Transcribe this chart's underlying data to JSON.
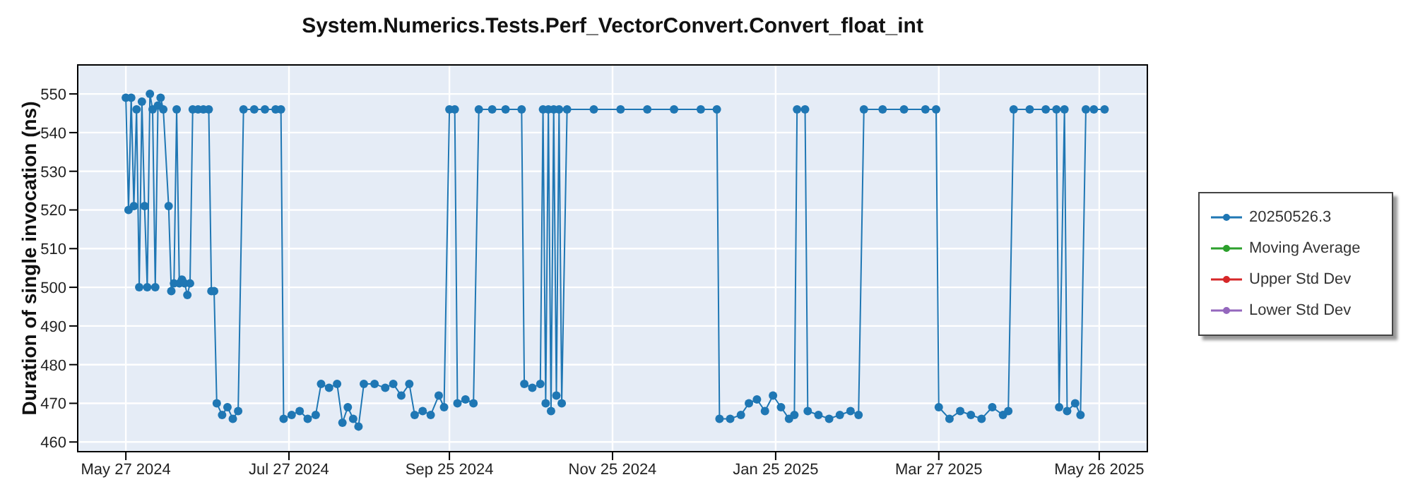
{
  "chart_data": {
    "type": "line",
    "title": "System.Numerics.Tests.Perf_VectorConvert.Convert_float_int",
    "ylabel": "Duration of single invocation (ns)",
    "x": [
      "2024-05-27",
      "2024-05-28",
      "2024-05-29",
      "2024-05-30",
      "2024-05-31",
      "2024-06-01",
      "2024-06-02",
      "2024-06-03",
      "2024-06-04",
      "2024-06-05",
      "2024-06-06",
      "2024-06-07",
      "2024-06-08",
      "2024-06-09",
      "2024-06-10",
      "2024-06-12",
      "2024-06-13",
      "2024-06-14",
      "2024-06-15",
      "2024-06-16",
      "2024-06-17",
      "2024-06-18",
      "2024-06-19",
      "2024-06-20",
      "2024-06-21",
      "2024-06-23",
      "2024-06-25",
      "2024-06-27",
      "2024-06-28",
      "2024-06-29",
      "2024-06-30",
      "2024-07-02",
      "2024-07-04",
      "2024-07-06",
      "2024-07-08",
      "2024-07-10",
      "2024-07-14",
      "2024-07-18",
      "2024-07-22",
      "2024-07-24",
      "2024-07-25",
      "2024-07-28",
      "2024-07-31",
      "2024-08-03",
      "2024-08-06",
      "2024-08-08",
      "2024-08-11",
      "2024-08-14",
      "2024-08-16",
      "2024-08-18",
      "2024-08-20",
      "2024-08-22",
      "2024-08-24",
      "2024-08-28",
      "2024-09-01",
      "2024-09-04",
      "2024-09-07",
      "2024-09-10",
      "2024-09-12",
      "2024-09-15",
      "2024-09-18",
      "2024-09-21",
      "2024-09-23",
      "2024-09-25",
      "2024-09-27",
      "2024-09-28",
      "2024-10-01",
      "2024-10-04",
      "2024-10-06",
      "2024-10-11",
      "2024-10-16",
      "2024-10-22",
      "2024-10-23",
      "2024-10-26",
      "2024-10-29",
      "2024-10-30",
      "2024-10-31",
      "2024-11-01",
      "2024-11-02",
      "2024-11-03",
      "2024-11-04",
      "2024-11-05",
      "2024-11-06",
      "2024-11-08",
      "2024-11-18",
      "2024-11-28",
      "2024-12-08",
      "2024-12-18",
      "2024-12-28",
      "2025-01-03",
      "2025-01-04",
      "2025-01-08",
      "2025-01-12",
      "2025-01-15",
      "2025-01-18",
      "2025-01-21",
      "2025-01-24",
      "2025-01-27",
      "2025-01-30",
      "2025-02-01",
      "2025-02-02",
      "2025-02-05",
      "2025-02-06",
      "2025-02-10",
      "2025-02-14",
      "2025-02-18",
      "2025-02-22",
      "2025-02-25",
      "2025-02-27",
      "2025-03-06",
      "2025-03-14",
      "2025-03-22",
      "2025-03-26",
      "2025-03-27",
      "2025-03-31",
      "2025-04-04",
      "2025-04-08",
      "2025-04-12",
      "2025-04-16",
      "2025-04-20",
      "2025-04-22",
      "2025-04-24",
      "2025-04-30",
      "2025-05-06",
      "2025-05-10",
      "2025-05-11",
      "2025-05-13",
      "2025-05-14",
      "2025-05-17",
      "2025-05-19",
      "2025-05-21",
      "2025-05-24",
      "2025-05-28"
    ],
    "series": [
      {
        "name": "20250526.3",
        "color": "#1f77b4",
        "values": [
          549,
          520,
          549,
          521,
          546,
          500,
          548,
          521,
          500,
          550,
          546,
          500,
          547,
          549,
          546,
          521,
          499,
          501,
          546,
          501,
          502,
          501,
          498,
          501,
          546,
          546,
          546,
          546,
          499,
          499,
          470,
          467,
          469,
          466,
          468,
          546,
          546,
          546,
          546,
          546,
          466,
          467,
          468,
          466,
          467,
          475,
          474,
          475,
          465,
          469,
          466,
          464,
          475,
          475,
          474,
          475,
          472,
          475,
          467,
          468,
          467,
          472,
          469,
          546,
          546,
          470,
          471,
          470,
          546,
          546,
          546,
          546,
          475,
          474,
          475,
          546,
          470,
          546,
          468,
          546,
          472,
          546,
          470,
          546,
          546,
          546,
          546,
          546,
          546,
          546,
          466,
          466,
          467,
          470,
          471,
          468,
          472,
          469,
          466,
          467,
          546,
          546,
          468,
          467,
          466,
          467,
          468,
          467,
          546,
          546,
          546,
          546,
          546,
          469,
          466,
          468,
          467,
          466,
          469,
          467,
          468,
          546,
          546,
          546,
          546,
          469,
          546,
          468,
          470,
          467,
          546,
          546,
          546
        ]
      },
      {
        "name": "Moving Average",
        "color": "#2ca02c",
        "values": [
          null,
          null,
          null,
          null,
          null,
          null,
          null,
          null,
          null,
          null,
          null,
          null,
          null,
          null,
          null,
          null,
          null,
          null,
          null,
          null,
          null,
          null,
          null,
          null,
          null,
          null,
          null,
          null,
          null,
          null,
          null,
          null,
          null,
          null,
          null,
          null,
          null,
          null,
          null,
          null,
          null,
          null,
          null,
          null,
          null,
          null,
          null,
          null,
          null,
          null,
          null,
          null,
          null,
          null,
          null,
          null,
          null,
          null,
          null,
          null,
          null,
          null,
          null,
          null,
          null,
          null,
          null,
          null,
          null,
          null,
          null,
          null,
          null,
          null,
          null,
          null,
          null,
          null,
          null,
          null,
          null,
          null,
          null,
          null,
          null,
          null,
          null,
          null,
          null,
          null,
          null,
          null,
          null,
          null,
          null,
          null,
          null,
          null,
          null,
          null,
          null,
          null,
          null,
          null,
          null,
          null,
          null,
          null,
          null,
          null,
          null,
          null,
          null,
          null,
          null,
          null,
          null,
          null,
          null,
          null,
          null,
          null,
          null,
          null,
          null,
          null,
          null,
          null,
          null,
          null,
          null,
          null,
          null
        ]
      },
      {
        "name": "Upper Std Dev",
        "color": "#d62728",
        "values": [
          null,
          null,
          null,
          null,
          null,
          null,
          null,
          null,
          null,
          null,
          null,
          null,
          null,
          null,
          null,
          null,
          null,
          null,
          null,
          null,
          null,
          null,
          null,
          null,
          null,
          null,
          null,
          null,
          null,
          null,
          null,
          null,
          null,
          null,
          null,
          null,
          null,
          null,
          null,
          null,
          null,
          null,
          null,
          null,
          null,
          null,
          null,
          null,
          null,
          null,
          null,
          null,
          null,
          null,
          null,
          null,
          null,
          null,
          null,
          null,
          null,
          null,
          null,
          null,
          null,
          null,
          null,
          null,
          null,
          null,
          null,
          null,
          null,
          null,
          null,
          null,
          null,
          null,
          null,
          null,
          null,
          null,
          null,
          null,
          null,
          null,
          null,
          null,
          null,
          null,
          null,
          null,
          null,
          null,
          null,
          null,
          null,
          null,
          null,
          null,
          null,
          null,
          null,
          null,
          null,
          null,
          null,
          null,
          null,
          null,
          null,
          null,
          null,
          null,
          null,
          null,
          null,
          null,
          null,
          null,
          null,
          null,
          null,
          null,
          null,
          null,
          null,
          null,
          null,
          null,
          null,
          null,
          null
        ]
      },
      {
        "name": "Lower Std Dev",
        "color": "#9467bd",
        "values": [
          null,
          null,
          null,
          null,
          null,
          null,
          null,
          null,
          null,
          null,
          null,
          null,
          null,
          null,
          null,
          null,
          null,
          null,
          null,
          null,
          null,
          null,
          null,
          null,
          null,
          null,
          null,
          null,
          null,
          null,
          null,
          null,
          null,
          null,
          null,
          null,
          null,
          null,
          null,
          null,
          null,
          null,
          null,
          null,
          null,
          null,
          null,
          null,
          null,
          null,
          null,
          null,
          null,
          null,
          null,
          null,
          null,
          null,
          null,
          null,
          null,
          null,
          null,
          null,
          null,
          null,
          null,
          null,
          null,
          null,
          null,
          null,
          null,
          null,
          null,
          null,
          null,
          null,
          null,
          null,
          null,
          null,
          null,
          null,
          null,
          null,
          null,
          null,
          null,
          null,
          null,
          null,
          null,
          null,
          null,
          null,
          null,
          null,
          null,
          null,
          null,
          null,
          null,
          null,
          null,
          null,
          null,
          null,
          null,
          null,
          null,
          null,
          null,
          null,
          null,
          null,
          null,
          null,
          null,
          null,
          null,
          null,
          null,
          null,
          null,
          null,
          null,
          null,
          null,
          null,
          null,
          null,
          null
        ]
      }
    ],
    "xlim": [
      "2024-05-09",
      "2025-06-13"
    ],
    "xticks": [
      {
        "value": "2024-05-27",
        "label": "May 27 2024"
      },
      {
        "value": "2024-07-27",
        "label": "Jul 27 2024"
      },
      {
        "value": "2024-09-25",
        "label": "Sep 25 2024"
      },
      {
        "value": "2024-11-25",
        "label": "Nov 25 2024"
      },
      {
        "value": "2025-01-25",
        "label": "Jan 25 2025"
      },
      {
        "value": "2025-03-27",
        "label": "Mar 27 2025"
      },
      {
        "value": "2025-05-26",
        "label": "May 26 2025"
      }
    ],
    "ylim": [
      457.5,
      557.5
    ],
    "yticks": [
      460,
      470,
      480,
      490,
      500,
      510,
      520,
      530,
      540,
      550
    ],
    "grid": true,
    "legend": "right",
    "marker": "circle",
    "line_style": "solid"
  }
}
